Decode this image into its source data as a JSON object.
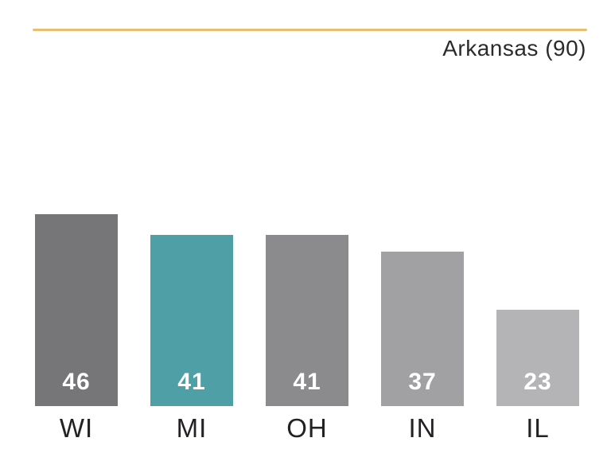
{
  "header": {
    "title": "Arkansas (90)"
  },
  "chart_data": {
    "type": "bar",
    "title": "Arkansas (90)",
    "reference_label": "Arkansas",
    "reference_value": 90,
    "categories": [
      "WI",
      "MI",
      "OH",
      "IN",
      "IL"
    ],
    "values": [
      46,
      41,
      41,
      37,
      23
    ],
    "highlight_category": "MI",
    "bar_colors": [
      "#767678",
      "#4f9fa6",
      "#8b8b8d",
      "#a1a1a3",
      "#b4b4b6"
    ],
    "value_label_color": "#ffffff",
    "category_label_color": "#232124",
    "accent_line_color": "#e7bf72",
    "xlabel": "",
    "ylabel": "",
    "grid": false,
    "legend_position": "none",
    "value_labels_position": "inside-bottom",
    "background_color": "#ffffff"
  }
}
